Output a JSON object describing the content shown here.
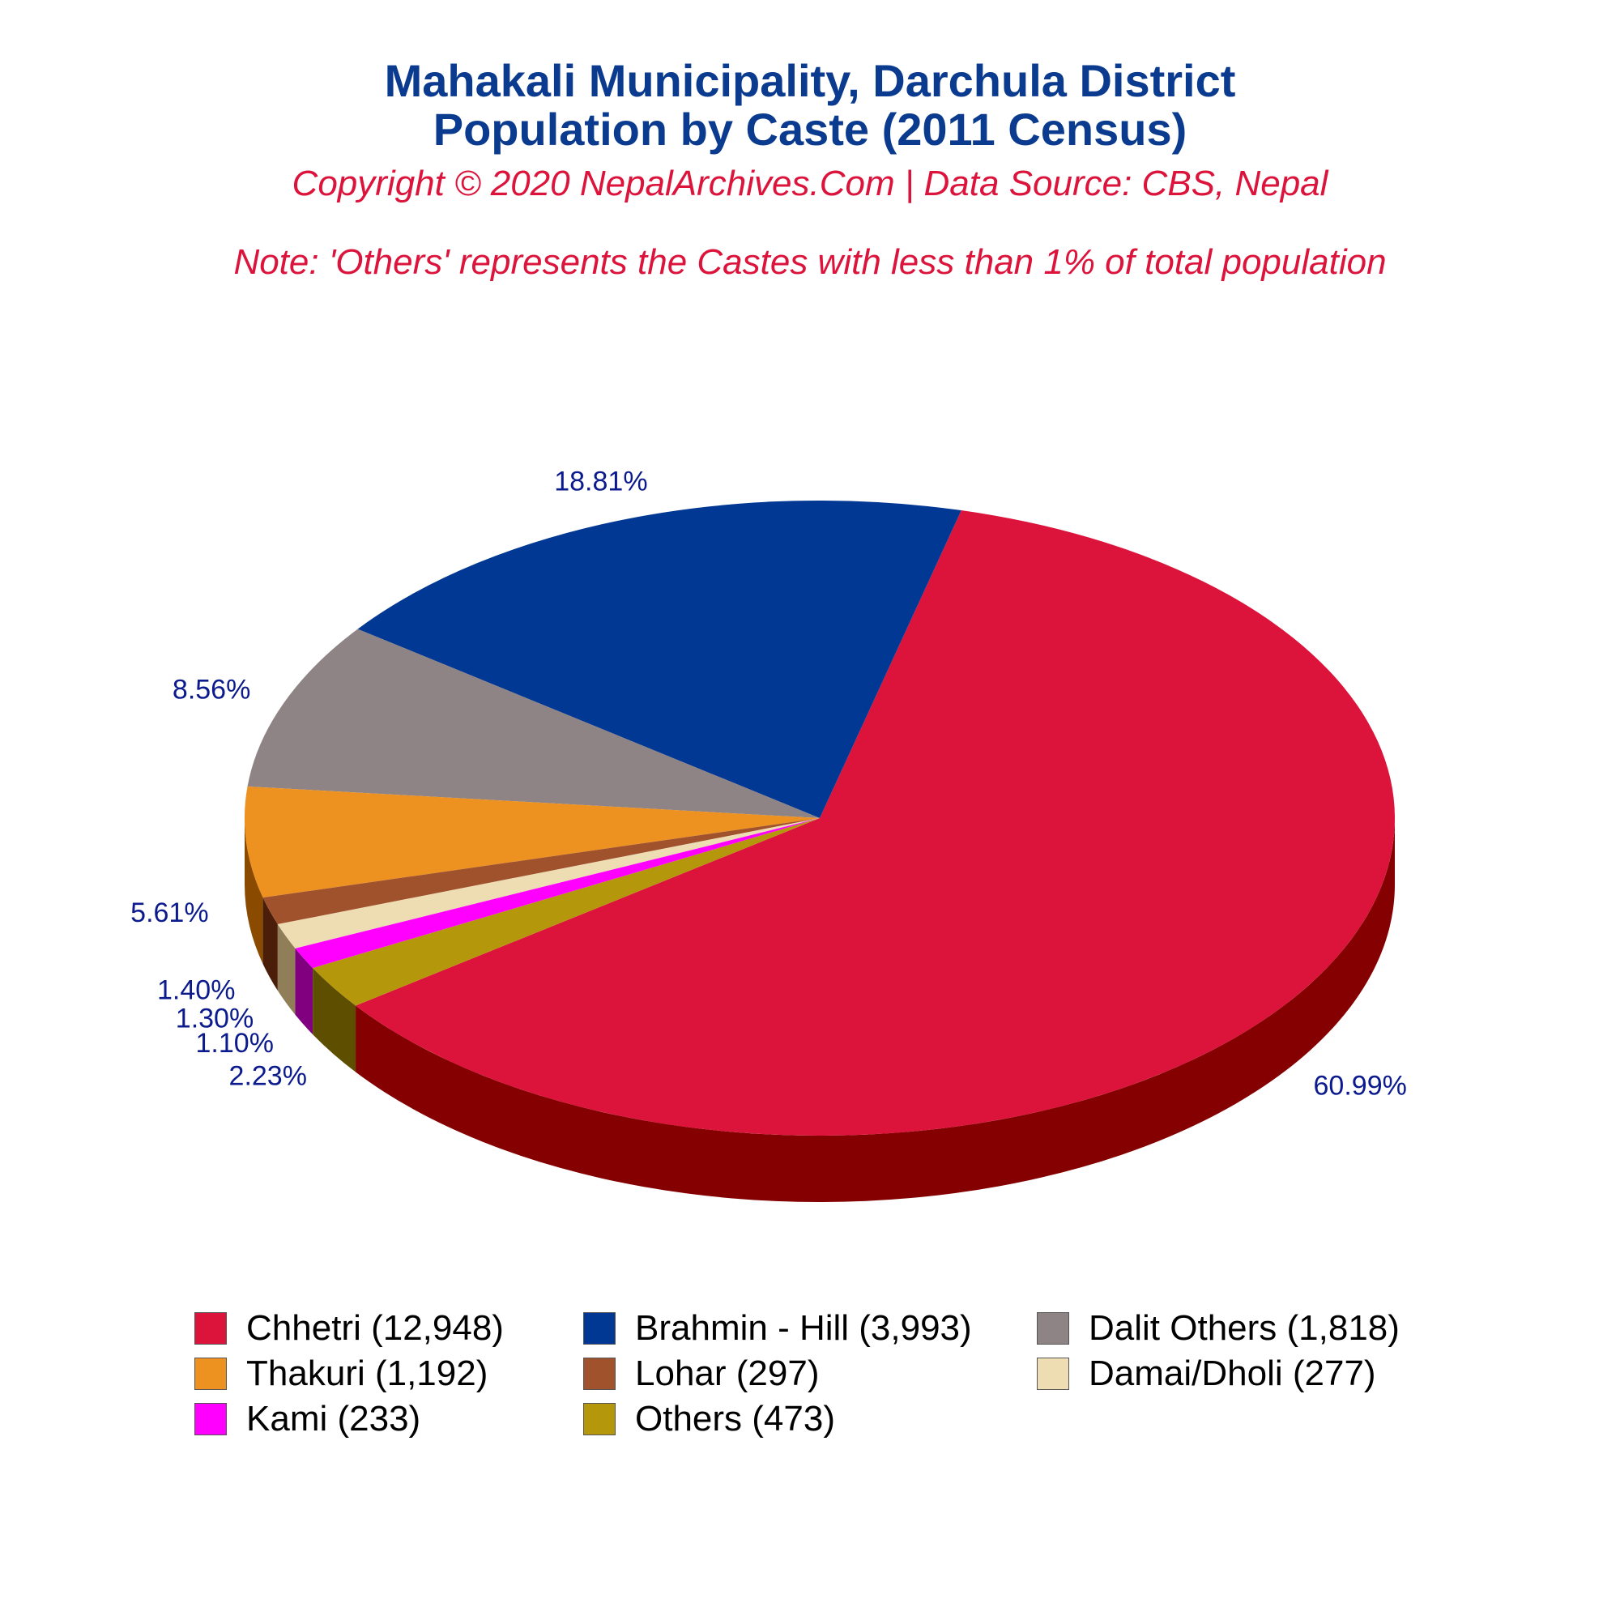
{
  "header": {
    "title_line1": "Mahakali Municipality, Darchula District",
    "title_line2": "Population by Caste (2011 Census)",
    "copyright": "Copyright © 2020 NepalArchives.Com | Data Source: CBS, Nepal",
    "note": "Note: 'Others' represents the Castes with less than 1% of total population"
  },
  "chart_data": {
    "type": "pie",
    "style": "3d",
    "title": "Mahakali Municipality, Darchula District Population by Caste (2011 Census)",
    "legend_position": "bottom",
    "slices": [
      {
        "label": "Chhetri (12,948)",
        "name": "Chhetri",
        "value": 12948,
        "percent_label": "60.99%",
        "color": "#dc143c",
        "side_color": "#850000"
      },
      {
        "label": "Brahmin - Hill (3,993)",
        "name": "Brahmin - Hill",
        "value": 3993,
        "percent_label": "18.81%",
        "color": "#003893",
        "side_color": "#000033"
      },
      {
        "label": "Dalit Others (1,818)",
        "name": "Dalit Others",
        "value": 1818,
        "percent_label": "8.56%",
        "color": "#8e8385",
        "side_color": "#302a2b"
      },
      {
        "label": "Thakuri (1,192)",
        "name": "Thakuri",
        "value": 1192,
        "percent_label": "5.61%",
        "color": "#ed9121",
        "side_color": "#8a4b00"
      },
      {
        "label": "Lohar (297)",
        "name": "Lohar",
        "value": 297,
        "percent_label": "1.40%",
        "color": "#a0522d",
        "side_color": "#4a1e08"
      },
      {
        "label": "Damai/Dholi (277)",
        "name": "Damai/Dholi",
        "value": 277,
        "percent_label": "1.30%",
        "color": "#eedcb3",
        "side_color": "#8f7e57"
      },
      {
        "label": "Kami (233)",
        "name": "Kami",
        "value": 233,
        "percent_label": "1.10%",
        "color": "#ff00ff",
        "side_color": "#800080"
      },
      {
        "label": "Others (473)",
        "name": "Others",
        "value": 473,
        "percent_label": "2.23%",
        "color": "#b5970b",
        "side_color": "#5e4e00"
      }
    ]
  }
}
